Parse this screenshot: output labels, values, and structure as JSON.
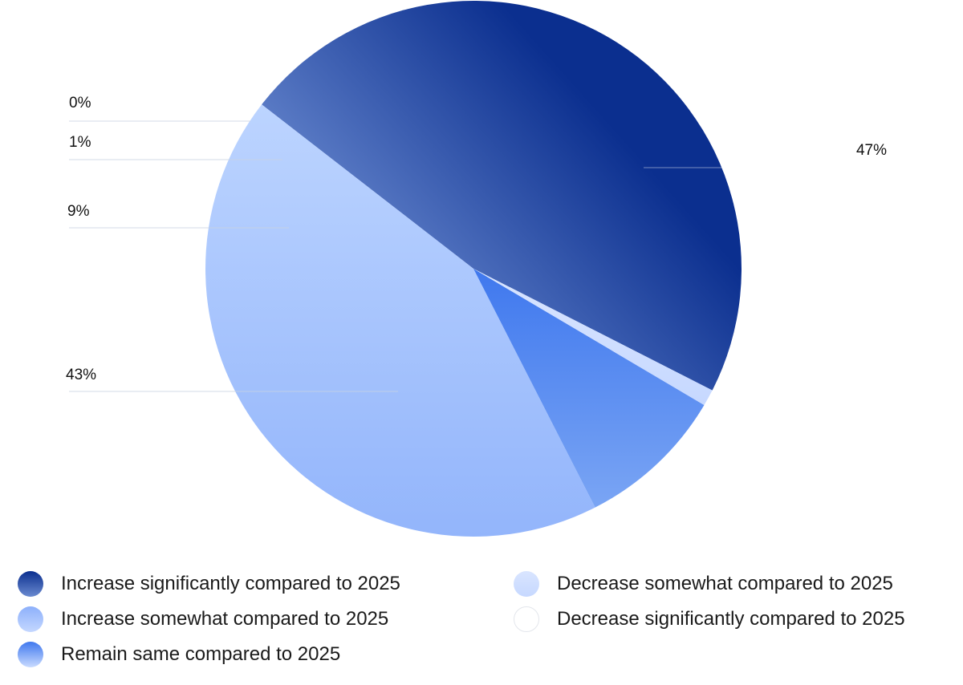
{
  "chart_data": {
    "type": "pie",
    "slices": [
      {
        "label": "Increase significantly compared to 2025",
        "value": 47,
        "display": "47%",
        "color_top": "#0b2f8f",
        "color_bottom": "#6a8ad0"
      },
      {
        "label": "Increase somewhat compared to 2025",
        "value": 43,
        "display": "43%",
        "color_top": "#bcd4ff",
        "color_bottom": "#93b5fb"
      },
      {
        "label": "Remain same compared to 2025",
        "value": 9,
        "display": "9%",
        "color_top": "#3f78ee",
        "color_bottom": "#7aa5f4"
      },
      {
        "label": "Decrease somewhat compared to 2025",
        "value": 1,
        "display": "1%",
        "color_top": "#d9e5ff",
        "color_bottom": "#c6d8ff"
      },
      {
        "label": "Decrease significantly compared to 2025",
        "value": 0,
        "display": "0%",
        "color_top": "#ffffff",
        "color_bottom": "#ffffff"
      }
    ],
    "legend_placement": "bottom"
  },
  "legend": [
    {
      "label": "Increase significantly compared to 2025"
    },
    {
      "label": "Increase somewhat compared to 2025"
    },
    {
      "label": "Remain same compared to 2025"
    },
    {
      "label": "Decrease somewhat compared to 2025"
    },
    {
      "label": "Decrease significantly compared to 2025"
    }
  ]
}
